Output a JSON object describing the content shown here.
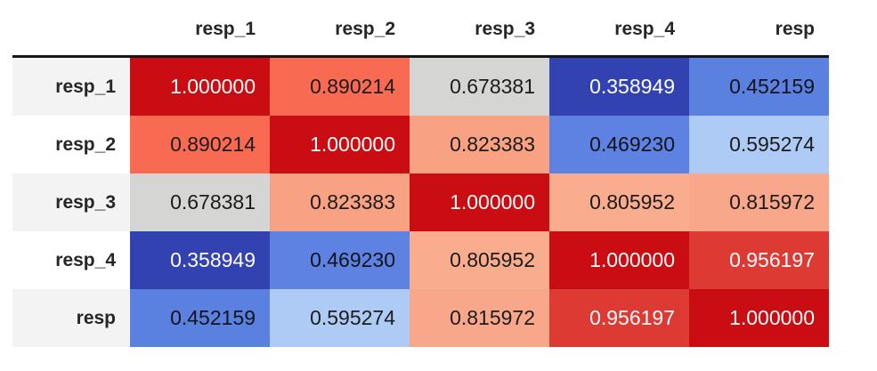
{
  "table": {
    "corner_label": "",
    "columns": [
      "resp_1",
      "resp_2",
      "resp_3",
      "resp_4",
      "resp"
    ],
    "rows": [
      {
        "label": "resp_1",
        "cells": [
          {
            "value": "1.000000",
            "bg": "#c90d12",
            "fg": "#ffffff"
          },
          {
            "value": "0.890214",
            "bg": "#f96a52",
            "fg": "#1c1c1c"
          },
          {
            "value": "0.678381",
            "bg": "#d5d5d3",
            "fg": "#1c1c1c"
          },
          {
            "value": "0.358949",
            "bg": "#3342b1",
            "fg": "#ffffff"
          },
          {
            "value": "0.452159",
            "bg": "#5a80e0",
            "fg": "#13131c"
          }
        ]
      },
      {
        "label": "resp_2",
        "cells": [
          {
            "value": "0.890214",
            "bg": "#f96a52",
            "fg": "#1c1c1c"
          },
          {
            "value": "1.000000",
            "bg": "#c90d12",
            "fg": "#ffffff"
          },
          {
            "value": "0.823383",
            "bg": "#f9a183",
            "fg": "#1c1c1c"
          },
          {
            "value": "0.469230",
            "bg": "#5d82e1",
            "fg": "#13131c"
          },
          {
            "value": "0.595274",
            "bg": "#adcbf4",
            "fg": "#1c1c1c"
          }
        ]
      },
      {
        "label": "resp_3",
        "cells": [
          {
            "value": "0.678381",
            "bg": "#d5d5d3",
            "fg": "#1c1c1c"
          },
          {
            "value": "0.823383",
            "bg": "#f9a183",
            "fg": "#1c1c1c"
          },
          {
            "value": "1.000000",
            "bg": "#c90d12",
            "fg": "#ffffff"
          },
          {
            "value": "0.805952",
            "bg": "#f9ac8e",
            "fg": "#1c1c1c"
          },
          {
            "value": "0.815972",
            "bg": "#f9a78a",
            "fg": "#1c1c1c"
          }
        ]
      },
      {
        "label": "resp_4",
        "cells": [
          {
            "value": "0.358949",
            "bg": "#3342b1",
            "fg": "#ffffff"
          },
          {
            "value": "0.469230",
            "bg": "#5d82e1",
            "fg": "#13131c"
          },
          {
            "value": "0.805952",
            "bg": "#f9ac8e",
            "fg": "#1c1c1c"
          },
          {
            "value": "1.000000",
            "bg": "#c90d12",
            "fg": "#ffffff"
          },
          {
            "value": "0.956197",
            "bg": "#dd3a33",
            "fg": "#ffffff"
          }
        ]
      },
      {
        "label": "resp",
        "cells": [
          {
            "value": "0.452159",
            "bg": "#5a80e0",
            "fg": "#13131c"
          },
          {
            "value": "0.595274",
            "bg": "#adcbf4",
            "fg": "#1c1c1c"
          },
          {
            "value": "0.815972",
            "bg": "#f9a78a",
            "fg": "#1c1c1c"
          },
          {
            "value": "0.956197",
            "bg": "#dd3a33",
            "fg": "#ffffff"
          },
          {
            "value": "1.000000",
            "bg": "#c90d12",
            "fg": "#ffffff"
          }
        ]
      }
    ]
  },
  "colors": {
    "colormap_low": "#3342b1",
    "colormap_mid": "#d5d5d3",
    "colormap_high": "#c90d12",
    "header_border": "#141414",
    "row_stripe": "#f3f3f3",
    "background": "#ffffff"
  },
  "chart_data": {
    "type": "heatmap",
    "title": "",
    "xlabel": "",
    "ylabel": "",
    "x_labels": [
      "resp_1",
      "resp_2",
      "resp_3",
      "resp_4",
      "resp"
    ],
    "y_labels": [
      "resp_1",
      "resp_2",
      "resp_3",
      "resp_4",
      "resp"
    ],
    "matrix": [
      [
        1.0,
        0.890214,
        0.678381,
        0.358949,
        0.452159
      ],
      [
        0.890214,
        1.0,
        0.823383,
        0.46923,
        0.595274
      ],
      [
        0.678381,
        0.823383,
        1.0,
        0.805952,
        0.815972
      ],
      [
        0.358949,
        0.46923,
        0.805952,
        1.0,
        0.956197
      ],
      [
        0.452159,
        0.595274,
        0.815972,
        0.956197,
        1.0
      ]
    ],
    "value_range": [
      0.358949,
      1.0
    ],
    "colormap": "coolwarm",
    "legend_position": "none",
    "grid": false
  }
}
